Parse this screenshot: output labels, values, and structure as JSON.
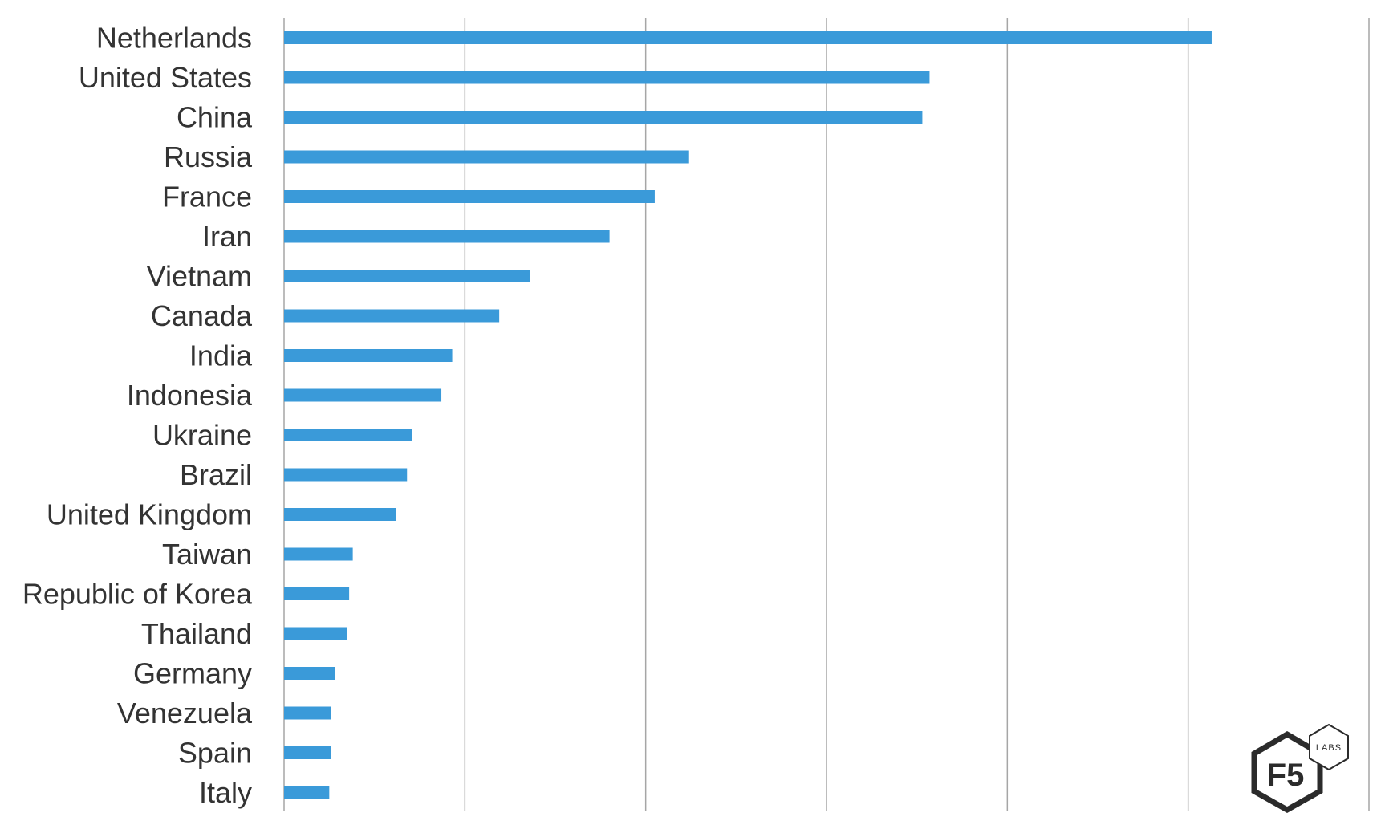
{
  "chart_data": {
    "type": "bar",
    "orientation": "horizontal",
    "title": "",
    "xlabel": "",
    "ylabel": "",
    "categories": [
      "Netherlands",
      "United States",
      "China",
      "Russia",
      "France",
      "Iran",
      "Vietnam",
      "Canada",
      "India",
      "Indonesia",
      "Ukraine",
      "Brazil",
      "United Kingdom",
      "Taiwan",
      "Republic of Korea",
      "Thailand",
      "Germany",
      "Venezuela",
      "Spain",
      "Italy"
    ],
    "values": [
      5.13,
      3.57,
      3.53,
      2.24,
      2.05,
      1.8,
      1.36,
      1.19,
      0.93,
      0.87,
      0.71,
      0.68,
      0.62,
      0.38,
      0.36,
      0.35,
      0.28,
      0.26,
      0.26,
      0.25
    ],
    "xlim": [
      0,
      6
    ],
    "grid": true,
    "gridline_count": 7,
    "tick_labels_visible": false,
    "legend": "none",
    "colors": {
      "bar": "#3A9AD9",
      "grid": "#A6A6A6",
      "label": "#333333"
    }
  },
  "logo": {
    "brand": "F5",
    "badge": "LABS",
    "colors": {
      "stroke": "#2b2b2b",
      "text": "#2b2b2b"
    }
  }
}
